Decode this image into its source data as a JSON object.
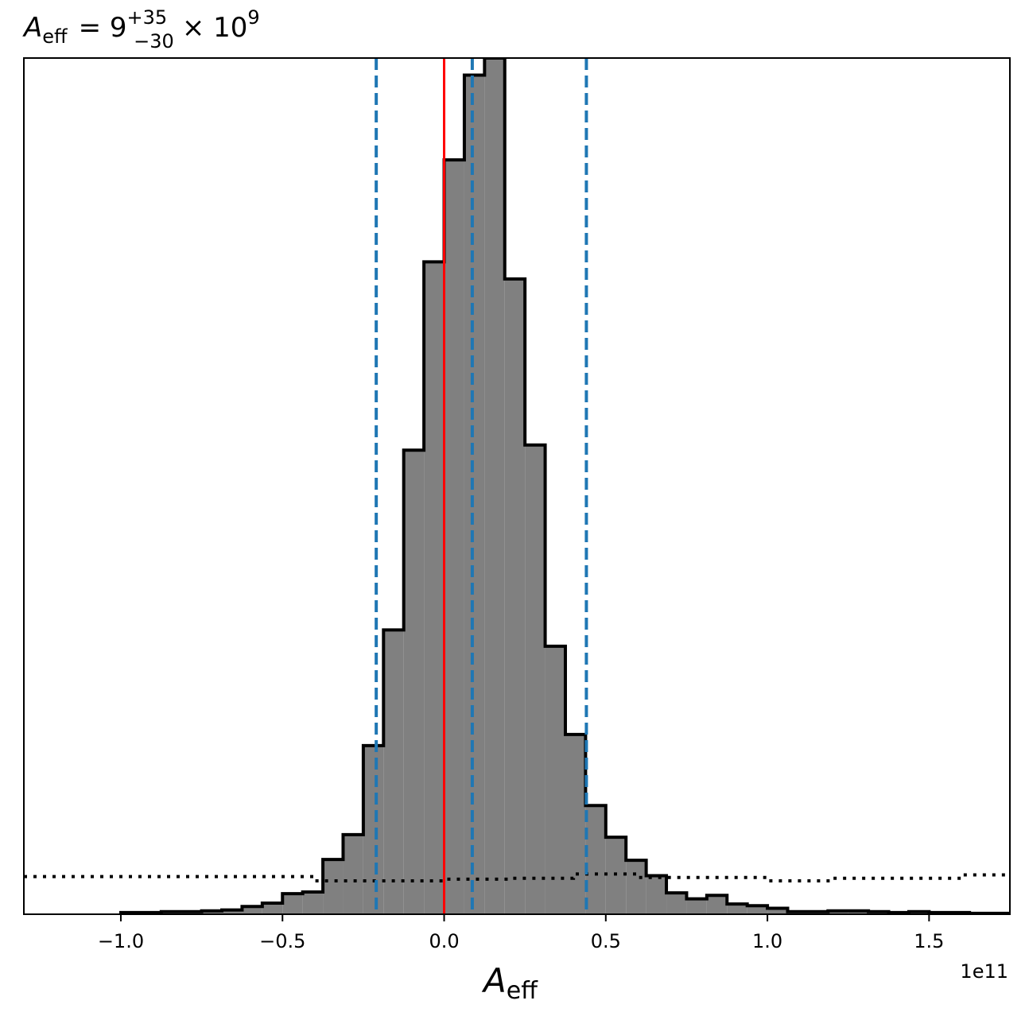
{
  "chart_data": {
    "type": "histogram",
    "title": {
      "symbol": "A",
      "subscript": "eff",
      "equals_value": "= 9",
      "sup": "+35",
      "sub": "−30",
      "times": "× 10",
      "exponent": "9"
    },
    "xlabel": {
      "symbol": "A",
      "subscript": "eff"
    },
    "x_offset_label": "1e11",
    "x_scale_factor": 100000000000.0,
    "xlim": [
      -1.3,
      1.75
    ],
    "ylim": [
      0,
      1.0
    ],
    "xticks": [
      -1.0,
      -0.5,
      0.0,
      0.5,
      1.0,
      1.5
    ],
    "xtick_labels": [
      "−1.0",
      "−0.5",
      "0.0",
      "0.5",
      "1.0",
      "1.5"
    ],
    "bin_width": 0.0625,
    "bins_start": -1.3,
    "bins_end": 1.75,
    "bins": [
      {
        "x0": -1.0,
        "x1": -0.9375,
        "count": 0.002
      },
      {
        "x0": -0.9375,
        "x1": -0.875,
        "count": 0.002
      },
      {
        "x0": -0.875,
        "x1": -0.8125,
        "count": 0.003
      },
      {
        "x0": -0.8125,
        "x1": -0.75,
        "count": 0.003
      },
      {
        "x0": -0.75,
        "x1": -0.6875,
        "count": 0.004
      },
      {
        "x0": -0.6875,
        "x1": -0.625,
        "count": 0.005
      },
      {
        "x0": -0.625,
        "x1": -0.5625,
        "count": 0.009
      },
      {
        "x0": -0.5625,
        "x1": -0.5,
        "count": 0.013
      },
      {
        "x0": -0.5,
        "x1": -0.4375,
        "count": 0.024
      },
      {
        "x0": -0.4375,
        "x1": -0.375,
        "count": 0.026
      },
      {
        "x0": -0.375,
        "x1": -0.3125,
        "count": 0.064
      },
      {
        "x0": -0.3125,
        "x1": -0.25,
        "count": 0.093
      },
      {
        "x0": -0.25,
        "x1": -0.1875,
        "count": 0.197
      },
      {
        "x0": -0.1875,
        "x1": -0.125,
        "count": 0.332
      },
      {
        "x0": -0.125,
        "x1": -0.0625,
        "count": 0.542
      },
      {
        "x0": -0.0625,
        "x1": 0.0,
        "count": 0.762
      },
      {
        "x0": 0.0,
        "x1": 0.0625,
        "count": 0.881
      },
      {
        "x0": 0.0625,
        "x1": 0.125,
        "count": 0.98
      },
      {
        "x0": 0.125,
        "x1": 0.1875,
        "count": 1.0
      },
      {
        "x0": 0.1875,
        "x1": 0.25,
        "count": 0.742
      },
      {
        "x0": 0.25,
        "x1": 0.3125,
        "count": 0.548
      },
      {
        "x0": 0.3125,
        "x1": 0.375,
        "count": 0.313
      },
      {
        "x0": 0.375,
        "x1": 0.4375,
        "count": 0.21
      },
      {
        "x0": 0.4375,
        "x1": 0.5,
        "count": 0.127
      },
      {
        "x0": 0.5,
        "x1": 0.5625,
        "count": 0.09
      },
      {
        "x0": 0.5625,
        "x1": 0.625,
        "count": 0.063
      },
      {
        "x0": 0.625,
        "x1": 0.6875,
        "count": 0.045
      },
      {
        "x0": 0.6875,
        "x1": 0.75,
        "count": 0.025
      },
      {
        "x0": 0.75,
        "x1": 0.8125,
        "count": 0.018
      },
      {
        "x0": 0.8125,
        "x1": 0.875,
        "count": 0.022
      },
      {
        "x0": 0.875,
        "x1": 0.9375,
        "count": 0.012
      },
      {
        "x0": 0.9375,
        "x1": 1.0,
        "count": 0.01
      },
      {
        "x0": 1.0,
        "x1": 1.0625,
        "count": 0.007
      },
      {
        "x0": 1.0625,
        "x1": 1.125,
        "count": 0.003
      },
      {
        "x0": 1.125,
        "x1": 1.1875,
        "count": 0.003
      },
      {
        "x0": 1.1875,
        "x1": 1.25,
        "count": 0.004
      },
      {
        "x0": 1.25,
        "x1": 1.3125,
        "count": 0.004
      },
      {
        "x0": 1.3125,
        "x1": 1.375,
        "count": 0.003
      },
      {
        "x0": 1.375,
        "x1": 1.4375,
        "count": 0.002
      },
      {
        "x0": 1.4375,
        "x1": 1.5,
        "count": 0.003
      },
      {
        "x0": 1.5,
        "x1": 1.5625,
        "count": 0.002
      },
      {
        "x0": 1.5625,
        "x1": 1.625,
        "count": 0.002
      },
      {
        "x0": 1.625,
        "x1": 1.6875,
        "count": 0.001
      },
      {
        "x0": 1.6875,
        "x1": 1.75,
        "count": 0.001
      }
    ],
    "prior_dotted": {
      "steps": [
        {
          "x0": -1.3,
          "x1": -0.4,
          "value": 0.044
        },
        {
          "x0": -0.4,
          "x1": -0.2,
          "value": 0.039
        },
        {
          "x0": -0.2,
          "x1": 0.0,
          "value": 0.039
        },
        {
          "x0": 0.0,
          "x1": 0.2,
          "value": 0.041
        },
        {
          "x0": 0.2,
          "x1": 0.4,
          "value": 0.042
        },
        {
          "x0": 0.4,
          "x1": 0.6,
          "value": 0.047
        },
        {
          "x0": 0.6,
          "x1": 0.8,
          "value": 0.043
        },
        {
          "x0": 0.8,
          "x1": 1.0,
          "value": 0.043
        },
        {
          "x0": 1.0,
          "x1": 1.2,
          "value": 0.039
        },
        {
          "x0": 1.2,
          "x1": 1.6,
          "value": 0.042
        },
        {
          "x0": 1.6,
          "x1": 1.75,
          "value": 0.046
        }
      ]
    },
    "vertical_lines": [
      {
        "x": 0.0,
        "style": "solid",
        "color": "#ff0000"
      },
      {
        "x": -0.21,
        "style": "dashed",
        "color": "#1f77b4"
      },
      {
        "x": 0.087,
        "style": "dashed",
        "color": "#1f77b4"
      },
      {
        "x": 0.44,
        "style": "dashed",
        "color": "#1f77b4"
      }
    ],
    "colors": {
      "fill": "#808080",
      "edge": "#000000",
      "truth": "#ff0000",
      "quantiles": "#1f77b4"
    }
  }
}
